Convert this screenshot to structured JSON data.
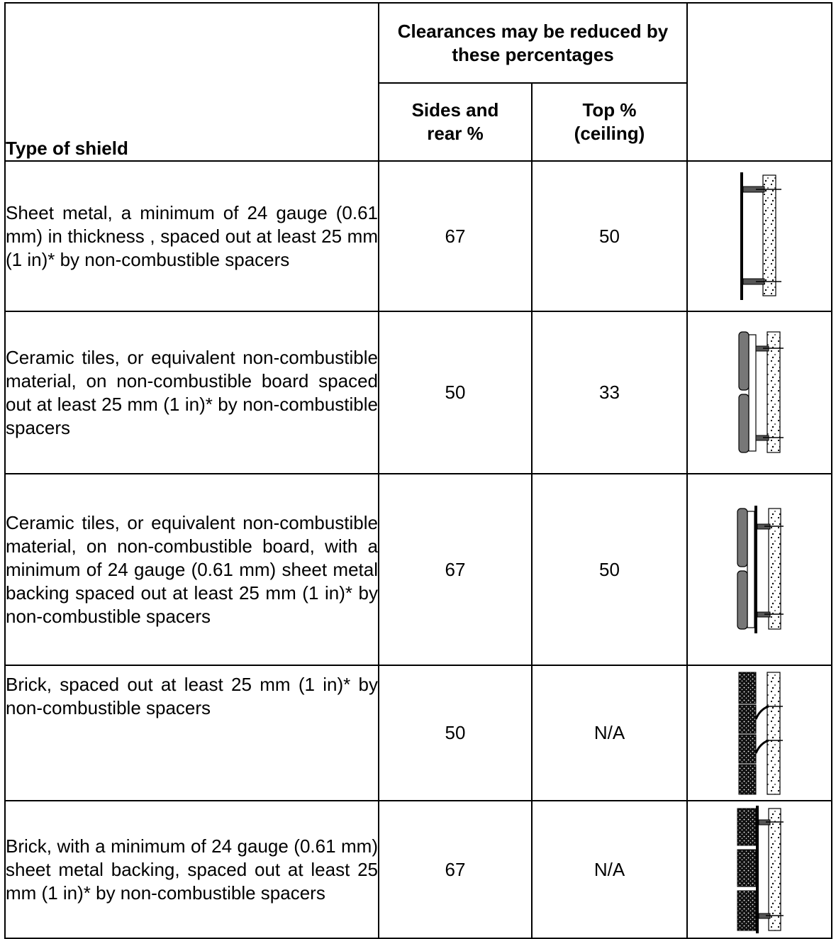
{
  "header": {
    "group_label": "Clearances may be reduced by these percentages",
    "type_label": "Type of shield",
    "sides_label": "Sides and rear %",
    "top_label": "Top % (ceiling)"
  },
  "rows": [
    {
      "description": "Sheet metal, a minimum of 24 gauge (0.61 mm) in thickness , spaced out at least 25 mm (1 in)* by non-combustible spacers",
      "sides": "67",
      "top": "50",
      "figure": "sheet-metal-shield-figure"
    },
    {
      "description": "Ceramic tiles, or equivalent non-combustible material, on non-combustible board spaced out at least 25 mm (1 in)* by non-combustible spacers",
      "sides": "50",
      "top": "33",
      "figure": "ceramic-tile-shield-figure"
    },
    {
      "description": "Ceramic tiles, or equivalent non-combustible material, on non-combustible board, with a minimum of 24 gauge (0.61 mm) sheet metal backing spaced out at least 25 mm (1 in)* by non-combustible spacers",
      "sides": "67",
      "top": "50",
      "figure": "ceramic-tile-metal-backed-shield-figure"
    },
    {
      "description": "Brick, spaced out at least 25 mm (1 in)* by non-combustible spacers",
      "sides": "50",
      "top": "N/A",
      "figure": "brick-shield-figure"
    },
    {
      "description": "Brick, with a minimum of 24 gauge (0.61 mm) sheet metal backing, spaced out at least 25 mm (1 in)* by non-combustible spacers",
      "sides": "67",
      "top": "N/A",
      "figure": "brick-metal-backed-shield-figure"
    }
  ]
}
